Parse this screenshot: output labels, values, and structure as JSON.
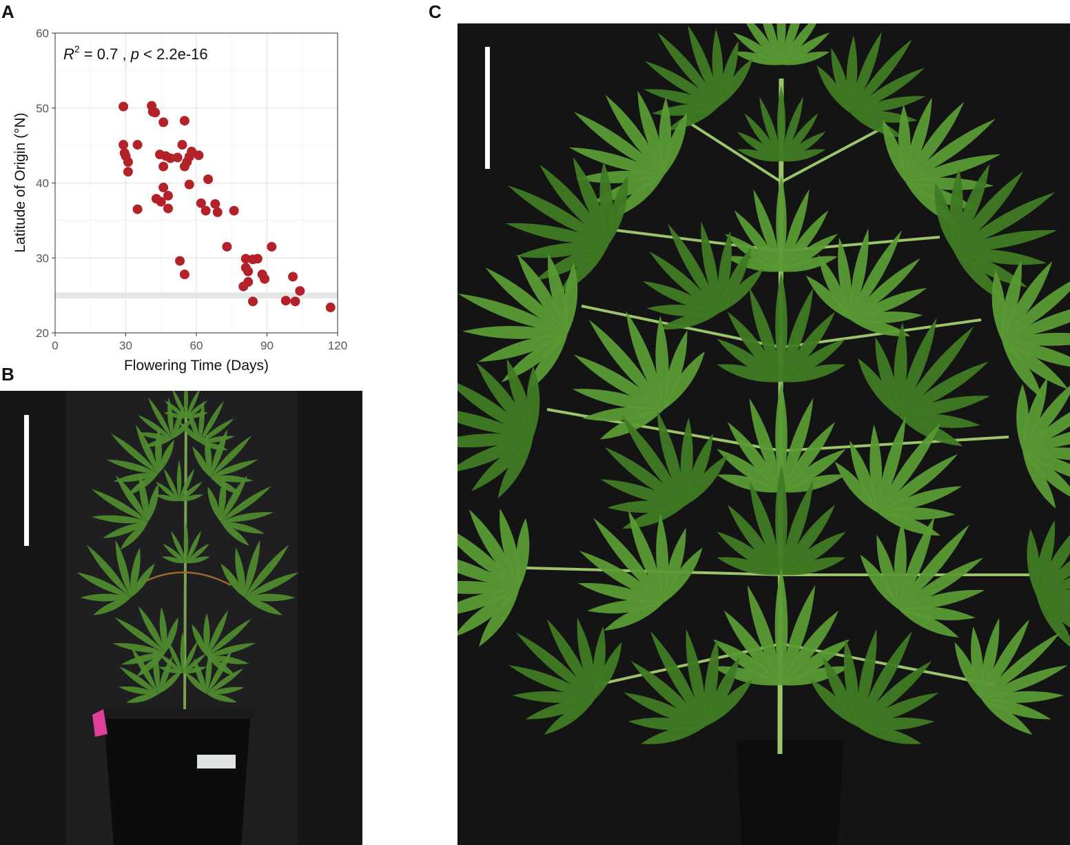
{
  "panels": {
    "a": "A",
    "b": "B",
    "c": "C"
  },
  "chart_data": {
    "type": "scatter",
    "annotation": {
      "r": "R",
      "sup": "2",
      "mid": " = 0.7 , ",
      "p": "p",
      "tail": " < 2.2e-16"
    },
    "xlabel": "Flowering Time (Days)",
    "ylabel": "Latitude of Origin (°N)",
    "xlim": [
      0,
      120
    ],
    "ylim": [
      20,
      60
    ],
    "xticks": [
      0,
      30,
      60,
      90,
      120
    ],
    "yticks": [
      20,
      30,
      40,
      50,
      60
    ],
    "grid": true,
    "band_y": [
      24.6,
      25.4
    ],
    "point_color": "#b22228",
    "band_color": "#e6e6e6",
    "points": [
      [
        29,
        50.2
      ],
      [
        41,
        50.3
      ],
      [
        41.5,
        49.5
      ],
      [
        42.5,
        49.4
      ],
      [
        46,
        48.1
      ],
      [
        55,
        48.3
      ],
      [
        29,
        45.1
      ],
      [
        35,
        45.1
      ],
      [
        54,
        45.1
      ],
      [
        29.5,
        44.0
      ],
      [
        30,
        43.6
      ],
      [
        44.5,
        43.8
      ],
      [
        47,
        43.6
      ],
      [
        52,
        43.4
      ],
      [
        58,
        44.2
      ],
      [
        61,
        43.7
      ],
      [
        31,
        42.8
      ],
      [
        46,
        42.2
      ],
      [
        49,
        43.3
      ],
      [
        55,
        42.2
      ],
      [
        56,
        42.8
      ],
      [
        57,
        43.5
      ],
      [
        31,
        41.5
      ],
      [
        57,
        39.8
      ],
      [
        65,
        40.5
      ],
      [
        46,
        39.4
      ],
      [
        43,
        37.9
      ],
      [
        48,
        38.3
      ],
      [
        45,
        37.5
      ],
      [
        62,
        37.3
      ],
      [
        68,
        37.2
      ],
      [
        35,
        36.5
      ],
      [
        48,
        36.6
      ],
      [
        64,
        36.3
      ],
      [
        69,
        36.1
      ],
      [
        76,
        36.3
      ],
      [
        73,
        31.5
      ],
      [
        92,
        31.5
      ],
      [
        53,
        29.6
      ],
      [
        81,
        29.9
      ],
      [
        84,
        29.8
      ],
      [
        86,
        29.9
      ],
      [
        81,
        28.7
      ],
      [
        82,
        28.2
      ],
      [
        88,
        27.8
      ],
      [
        55,
        27.8
      ],
      [
        101,
        27.5
      ],
      [
        89,
        27.2
      ],
      [
        82,
        26.8
      ],
      [
        80,
        26.2
      ],
      [
        104,
        25.6
      ],
      [
        84,
        24.2
      ],
      [
        98,
        24.3
      ],
      [
        102,
        24.2
      ],
      [
        117,
        23.4
      ]
    ]
  },
  "photo_b": {
    "bg_color": "#161616",
    "back_panel_color": "#1f1f22",
    "leaf_color": "#4f8a2f",
    "pot_color": "#0c0c0c",
    "tag_color": "#e0409a"
  },
  "photo_c": {
    "bg_color": "#141414",
    "leaf_color": "#5a9a34",
    "leaf_dark": "#3f7a24",
    "stem_color": "#9cc46a",
    "pot_color": "#0d0d0d"
  }
}
